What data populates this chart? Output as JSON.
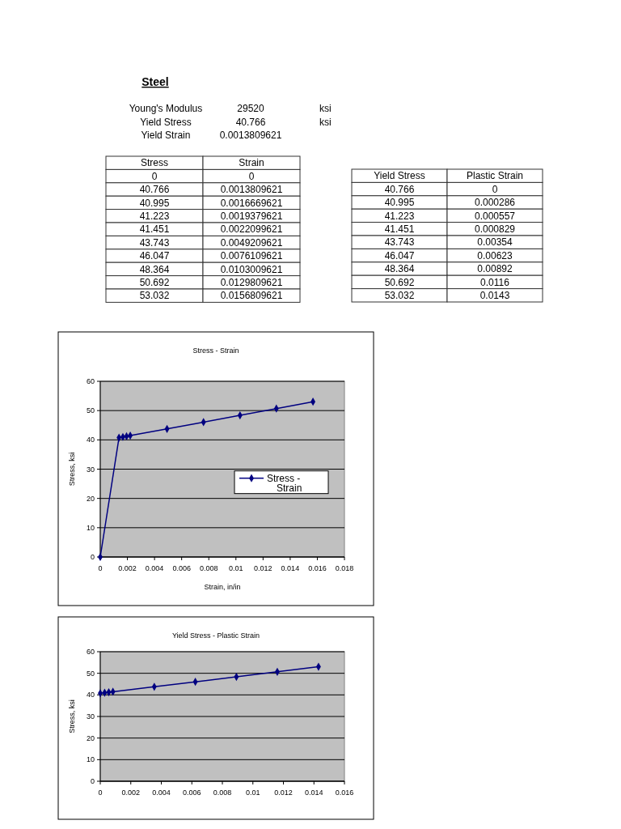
{
  "chart_data": [
    {
      "type": "other",
      "title": "Steel",
      "annotations": [
        "Young's Modulus",
        "29520",
        "ksi",
        "Yield Stress",
        "40.766",
        "ksi",
        "Yield Strain",
        "0.0013809621"
      ]
    },
    {
      "type": "line",
      "title": "Stress - Strain",
      "xlabel": "Strain, in/in",
      "ylabel": "Stress, ksi",
      "annotations": [
        "Stress",
        "Strain",
        "0",
        "0",
        "40.766",
        "0.0013809621",
        "40.995",
        "0.0016669621",
        "41.223",
        "0.0019379621",
        "41.451",
        "0.0022099621",
        "43.743",
        "0.0049209621",
        "46.047",
        "0.0076109621",
        "48.364",
        "0.0103009621",
        "50.692",
        "0.0129809621",
        "53.032",
        "0.0156809621"
      ],
      "x": [
        0,
        0.0013809621,
        0.0016669621,
        0.0019379621,
        0.0022099621,
        0.0049209621,
        0.0076109621,
        0.0103009621,
        0.0129809621,
        0.0156809621
      ],
      "series": [
        {
          "name": "Stress - Strain",
          "color": "#000080",
          "values": [
            0,
            40.766,
            40.995,
            41.223,
            41.451,
            43.743,
            46.047,
            48.364,
            50.692,
            53.032
          ]
        }
      ],
      "xlim": [
        0,
        0.018
      ],
      "xticks": [
        0,
        0.002,
        0.004,
        0.006,
        0.008,
        0.01,
        0.012,
        0.014,
        0.016,
        0.018
      ],
      "ylim": [
        0,
        60
      ],
      "yticks": [
        0,
        10,
        20,
        30,
        40,
        50,
        60
      ],
      "grid": "y",
      "legend": "right",
      "marker": "diamond"
    },
    {
      "type": "line",
      "title": "Yield Stress - Plastic Strain",
      "ylabel": "Stress, ksi",
      "annotations": [
        "Yield Stress",
        "Plastic Strain",
        "40.766",
        "0",
        "40.995",
        "0.000286",
        "41.223",
        "0.000557",
        "41.451",
        "0.000829",
        "43.743",
        "0.00354",
        "46.047",
        "0.00623",
        "48.364",
        "0.00892",
        "50.692",
        "0.0116",
        "53.032",
        "0.0143"
      ],
      "x": [
        0,
        0.000286,
        0.000557,
        0.000829,
        0.00354,
        0.00623,
        0.00892,
        0.0116,
        0.0143
      ],
      "series": [
        {
          "color": "#000080",
          "values": [
            40.766,
            40.995,
            41.223,
            41.451,
            43.743,
            46.047,
            48.364,
            50.692,
            53.032
          ]
        }
      ],
      "xlim": [
        0,
        0.016
      ],
      "xticks": [
        0,
        0.002,
        0.004,
        0.006,
        0.008,
        0.01,
        0.012,
        0.014,
        0.016
      ],
      "ylim": [
        0,
        60
      ],
      "yticks": [
        0,
        10,
        20,
        30,
        40,
        50,
        60
      ],
      "grid": "y",
      "marker": "diamond"
    }
  ]
}
